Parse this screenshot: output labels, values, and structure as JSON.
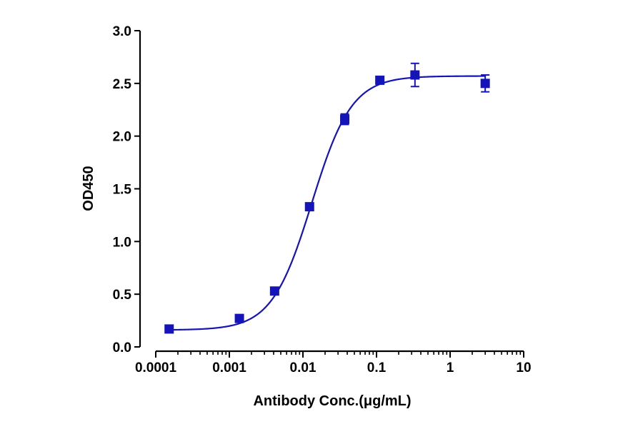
{
  "chart_data": {
    "type": "scatter",
    "xlabel": "Antibody Conc.(μg/mL)",
    "ylabel": "OD450",
    "x_scale": "log",
    "xlim": [
      0.0001,
      10
    ],
    "ylim": [
      0,
      3.0
    ],
    "x_ticks": [
      "0.0001",
      "0.001",
      "0.01",
      "0.1",
      "1",
      "10"
    ],
    "y_ticks": [
      "0.0",
      "0.5",
      "1.0",
      "1.5",
      "2.0",
      "2.5",
      "3.0"
    ],
    "grid": false,
    "legend": "none",
    "series": [
      {
        "color": "#1414b8",
        "marker": "square",
        "points": [
          {
            "x": 0.000152,
            "y": 0.17,
            "err": 0.0
          },
          {
            "x": 0.00137,
            "y": 0.27,
            "err": 0.02
          },
          {
            "x": 0.00412,
            "y": 0.53,
            "err": 0.02
          },
          {
            "x": 0.0123,
            "y": 1.33,
            "err": 0.03
          },
          {
            "x": 0.037,
            "y": 2.16,
            "err": 0.05
          },
          {
            "x": 0.111,
            "y": 2.53,
            "err": 0.02
          },
          {
            "x": 0.333,
            "y": 2.58,
            "err": 0.11
          },
          {
            "x": 3.0,
            "y": 2.5,
            "err": 0.08
          }
        ],
        "fit": {
          "model": "4PL",
          "bottom": 0.16,
          "top": 2.57,
          "ec50": 0.0132,
          "hill": 1.6,
          "x_range": [
            0.000152,
            3.0
          ]
        }
      }
    ]
  }
}
